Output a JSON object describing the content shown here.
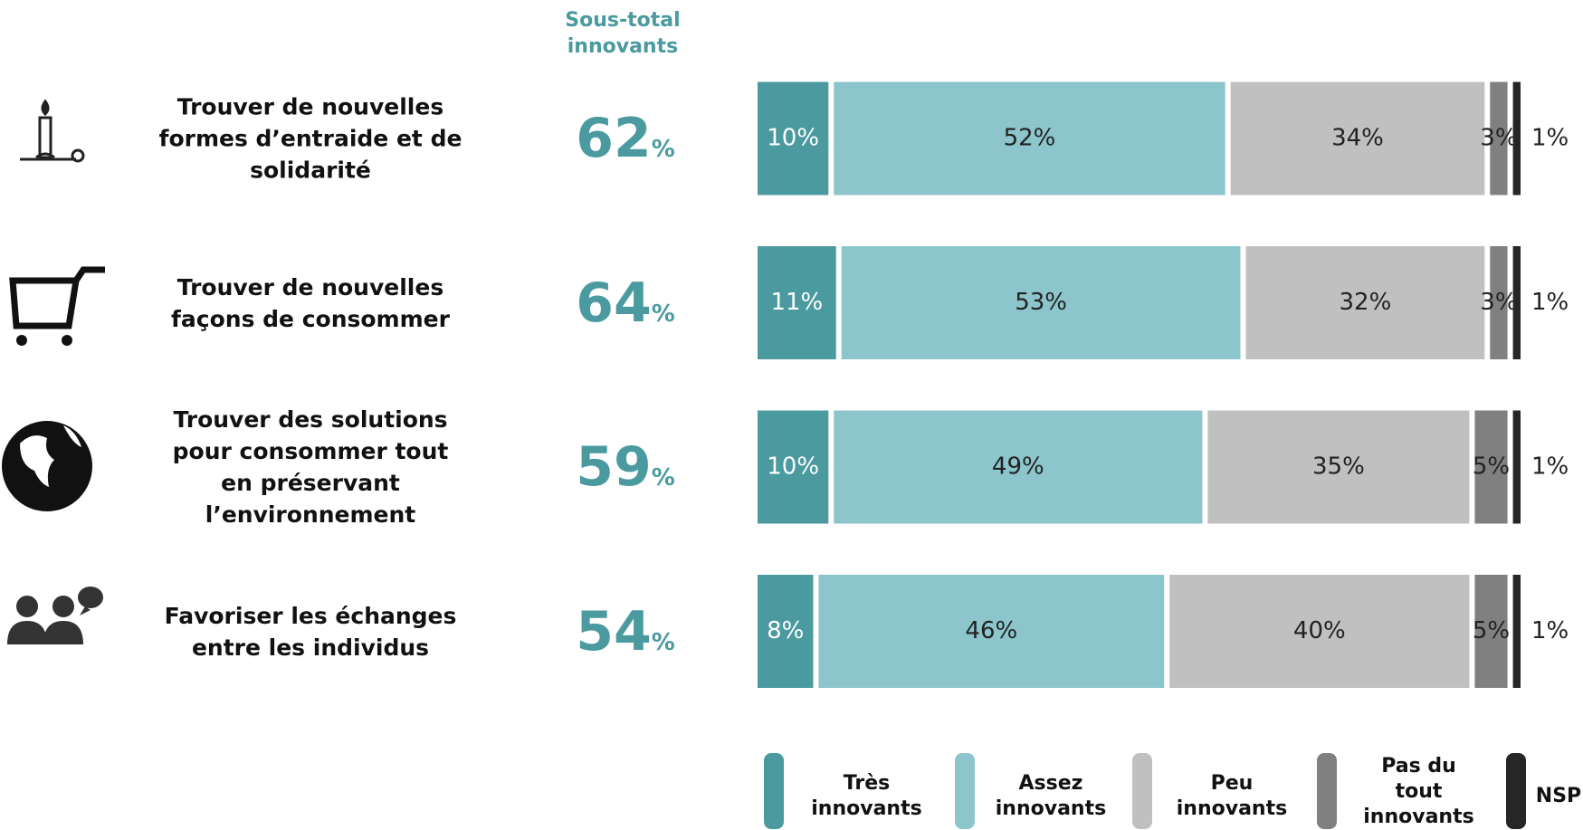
{
  "chart_data": {
    "type": "stacked-bar",
    "categories": [
      "Trouver de nouvelles\nformes d’entraide et de\nsolidarité",
      "Trouver de nouvelles\nfaçons de consommer",
      "Trouver des solutions\npour consommer tout\nen préservant\nl’environnement",
      "Favoriser les échanges\nentre les individus"
    ],
    "xlim": [
      0,
      100
    ],
    "series": [
      {
        "name": "Très\ninnovants",
        "color": "#4a9aa0",
        "values": [
          10,
          11,
          10,
          8
        ],
        "value_labels": [
          "10%",
          "11%",
          "10%",
          "8%"
        ]
      },
      {
        "name": "Assez\ninnovants",
        "color": "#8cc5cc",
        "values": [
          52,
          53,
          49,
          46
        ],
        "value_labels": [
          "52%",
          "53%",
          "49%",
          "46%"
        ]
      },
      {
        "name": "Peu\ninnovants",
        "color": "#c0c0c0",
        "values": [
          34,
          32,
          35,
          40
        ],
        "value_labels": [
          "34%",
          "32%",
          "35%",
          "40%"
        ]
      },
      {
        "name": "Pas du\ntout\ninnovants",
        "color": "#808080",
        "values": [
          3,
          3,
          5,
          5
        ],
        "value_labels": [
          "3%",
          "3%",
          "5%",
          "5%"
        ]
      },
      {
        "name": "NSP",
        "color": "#262626",
        "values": [
          1,
          1,
          1,
          1
        ],
        "value_labels": [
          "1%",
          "1%",
          "1%",
          "1%"
        ]
      }
    ],
    "subtotal": {
      "title": "Sous-total\ninnovants",
      "values": [
        62,
        64,
        59,
        54
      ],
      "unit": "%"
    }
  }
}
